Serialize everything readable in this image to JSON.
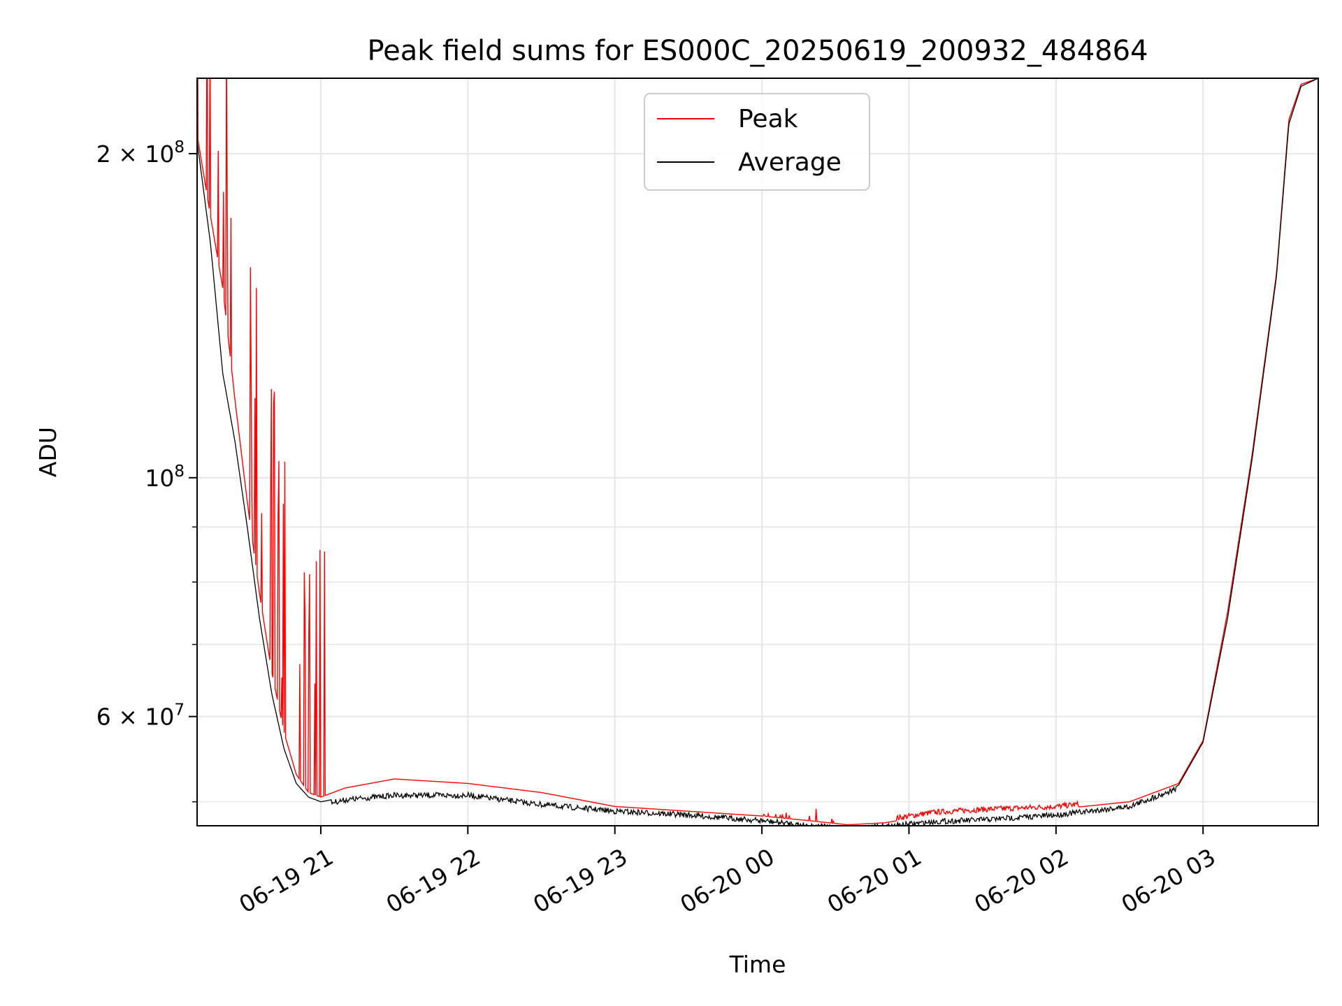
{
  "chart_data": {
    "type": "line",
    "title": "Peak field sums for ES000C_20250619_200932_484864",
    "xlabel": "Time",
    "ylabel": "ADU",
    "y_scale": "log",
    "ylim": [
      47500000,
      235000000
    ],
    "xlim": [
      "2025-06-19 20:09:32",
      "2025-06-20 03:47:00"
    ],
    "grid": true,
    "legend_position": "top-center",
    "x_ticks": [
      {
        "value": "2025-06-19 21:00",
        "label": "06-19 21"
      },
      {
        "value": "2025-06-19 22:00",
        "label": "06-19 22"
      },
      {
        "value": "2025-06-19 23:00",
        "label": "06-19 23"
      },
      {
        "value": "2025-06-20 00:00",
        "label": "06-20 00"
      },
      {
        "value": "2025-06-20 01:00",
        "label": "06-20 01"
      },
      {
        "value": "2025-06-20 02:00",
        "label": "06-20 02"
      },
      {
        "value": "2025-06-20 03:00",
        "label": "06-20 03"
      }
    ],
    "y_ticks_major": [
      {
        "value": 100000000,
        "base": "10",
        "exp": "8"
      },
      {
        "value": 200000000,
        "base": "2 × 10",
        "exp": "8"
      },
      {
        "value": 60000000,
        "base": "6 × 10",
        "exp": "7"
      }
    ],
    "y_ticks_minor": [
      50000000,
      70000000,
      80000000,
      90000000
    ],
    "series": [
      {
        "name": "Peak",
        "color": "#ff0000",
        "x": [
          "2025-06-19 20:09",
          "2025-06-19 20:15",
          "2025-06-19 20:20",
          "2025-06-19 20:25",
          "2025-06-19 20:30",
          "2025-06-19 20:35",
          "2025-06-19 20:40",
          "2025-06-19 20:45",
          "2025-06-19 20:50",
          "2025-06-19 20:55",
          "2025-06-19 21:00",
          "2025-06-19 21:10",
          "2025-06-19 21:30",
          "2025-06-19 22:00",
          "2025-06-19 22:30",
          "2025-06-19 23:00",
          "2025-06-19 23:30",
          "2025-06-20 00:00",
          "2025-06-20 00:20",
          "2025-06-20 00:35",
          "2025-06-20 00:50",
          "2025-06-20 01:10",
          "2025-06-20 01:30",
          "2025-06-20 02:00",
          "2025-06-20 02:30",
          "2025-06-20 02:50",
          "2025-06-20 03:00",
          "2025-06-20 03:10",
          "2025-06-20 03:20",
          "2025-06-20 03:30",
          "2025-06-20 03:35",
          "2025-06-20 03:40",
          "2025-06-20 03:47"
        ],
        "values": [
          212000000,
          175000000,
          150000000,
          118000000,
          95000000,
          78000000,
          66000000,
          58000000,
          53000000,
          51000000,
          50500000,
          51500000,
          52500000,
          52000000,
          51000000,
          49500000,
          49000000,
          48500000,
          48000000,
          47600000,
          47800000,
          48600000,
          48900000,
          49200000,
          50000000,
          52000000,
          57000000,
          75000000,
          105000000,
          155000000,
          215000000,
          232000000,
          235000000
        ]
      },
      {
        "name": "Average",
        "color": "#000000",
        "x": [
          "2025-06-19 20:09",
          "2025-06-19 20:15",
          "2025-06-19 20:20",
          "2025-06-19 20:25",
          "2025-06-19 20:30",
          "2025-06-19 20:35",
          "2025-06-19 20:40",
          "2025-06-19 20:45",
          "2025-06-19 20:50",
          "2025-06-19 20:55",
          "2025-06-19 21:00",
          "2025-06-19 21:10",
          "2025-06-19 21:30",
          "2025-06-19 22:00",
          "2025-06-19 22:30",
          "2025-06-19 23:00",
          "2025-06-19 23:30",
          "2025-06-20 00:00",
          "2025-06-20 00:20",
          "2025-06-20 00:35",
          "2025-06-20 00:50",
          "2025-06-20 01:10",
          "2025-06-20 01:30",
          "2025-06-20 02:00",
          "2025-06-20 02:30",
          "2025-06-20 02:50",
          "2025-06-20 03:00",
          "2025-06-20 03:10",
          "2025-06-20 03:20",
          "2025-06-20 03:30",
          "2025-06-20 03:35",
          "2025-06-20 03:40",
          "2025-06-20 03:47"
        ],
        "values": [
          210000000,
          165000000,
          125000000,
          108000000,
          90000000,
          74000000,
          63000000,
          56000000,
          52000000,
          50500000,
          50000000,
          50500000,
          51000000,
          51000000,
          50000000,
          49300000,
          48900000,
          48300000,
          47800000,
          47500000,
          47700000,
          48200000,
          48400000,
          48900000,
          49800000,
          51800000,
          56800000,
          74000000,
          104000000,
          154000000,
          213000000,
          231000000,
          235000000
        ]
      }
    ]
  }
}
